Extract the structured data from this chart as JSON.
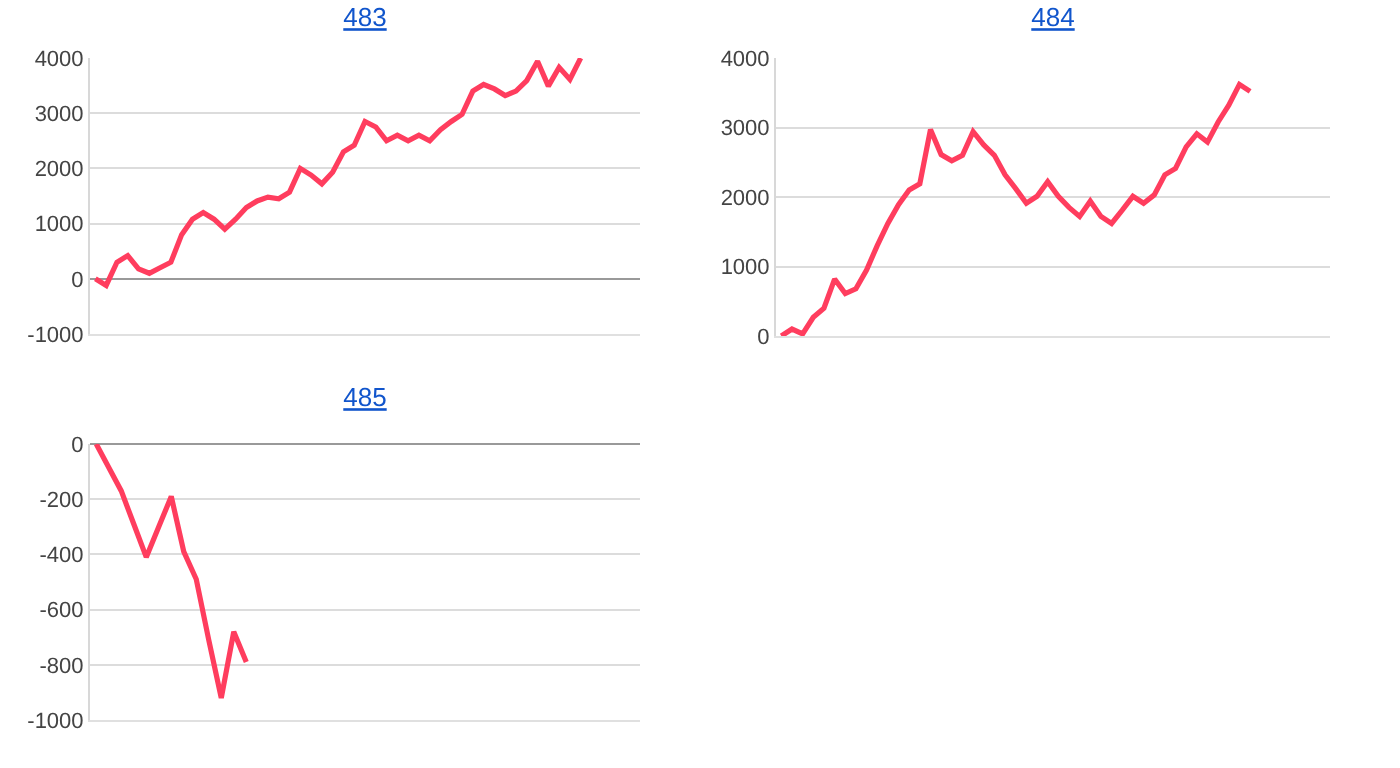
{
  "chart_data": [
    {
      "type": "line",
      "title": "483",
      "categories": [
        null,
        null,
        null,
        null,
        null,
        null,
        null,
        null,
        null,
        null,
        null,
        null,
        null,
        null,
        null,
        null,
        null,
        null,
        null,
        null,
        null,
        null,
        null,
        null,
        null,
        null,
        null,
        null,
        null,
        null,
        null,
        null,
        null,
        null,
        null,
        null,
        null,
        null,
        null,
        null,
        null,
        null,
        null,
        null,
        null,
        null,
        null,
        null,
        null,
        null,
        null
      ],
      "series": [
        {
          "color": "#ff3d5e",
          "values": [
            0,
            -120,
            300,
            420,
            180,
            100,
            200,
            300,
            800,
            1080,
            1200,
            1080,
            900,
            1080,
            1290,
            1410,
            1480,
            1450,
            1570,
            2000,
            1880,
            1720,
            1930,
            2300,
            2420,
            2850,
            2750,
            2500,
            2600,
            2500,
            2600,
            2500,
            2700,
            2850,
            2980,
            3400,
            3520,
            3440,
            3320,
            3400,
            3590,
            3940,
            3490,
            3830,
            3610,
            4000,
            null,
            null,
            null,
            null,
            null
          ]
        }
      ],
      "ylim": [
        -1000,
        4000
      ],
      "yticks": [
        -1000,
        0,
        1000,
        2000,
        3000,
        4000
      ],
      "grid": "y",
      "marker": "none",
      "line_style": "solid",
      "tick_labels": "y"
    },
    {
      "type": "line",
      "title": "484",
      "categories": [
        null,
        null,
        null,
        null,
        null,
        null,
        null,
        null,
        null,
        null,
        null,
        null,
        null,
        null,
        null,
        null,
        null,
        null,
        null,
        null,
        null,
        null,
        null,
        null,
        null,
        null,
        null,
        null,
        null,
        null,
        null,
        null,
        null,
        null,
        null,
        null,
        null,
        null,
        null,
        null,
        null,
        null,
        null,
        null,
        null,
        null,
        null,
        null,
        null,
        null,
        null,
        null
      ],
      "series": [
        {
          "color": "#ff3d5e",
          "values": [
            0,
            100,
            30,
            270,
            400,
            820,
            610,
            680,
            950,
            1300,
            1620,
            1890,
            2100,
            2190,
            2970,
            2610,
            2520,
            2600,
            2940,
            2750,
            2600,
            2320,
            2120,
            1910,
            2010,
            2220,
            2010,
            1850,
            1720,
            1940,
            1720,
            1620,
            1810,
            2010,
            1910,
            2030,
            2320,
            2410,
            2720,
            2910,
            2790,
            3080,
            3320,
            3620,
            3520,
            null,
            null,
            null,
            null,
            null,
            null,
            null
          ]
        }
      ],
      "ylim": [
        0,
        4000
      ],
      "yticks": [
        0,
        1000,
        2000,
        3000,
        4000
      ],
      "grid": "y",
      "marker": "none",
      "line_style": "solid",
      "tick_labels": "y"
    },
    {
      "type": "line",
      "title": "485",
      "categories": [
        null,
        null,
        null,
        null,
        null,
        null,
        null,
        null,
        null,
        null,
        null,
        null,
        null,
        null,
        null,
        null,
        null,
        null,
        null,
        null,
        null,
        null,
        null,
        null,
        null,
        null,
        null,
        null,
        null,
        null,
        null,
        null,
        null,
        null,
        null,
        null,
        null,
        null,
        null,
        null,
        null,
        null,
        null,
        null
      ],
      "series": [
        {
          "color": "#ff3d5e",
          "values": [
            0,
            -85,
            -170,
            -290,
            -410,
            -300,
            -190,
            -390,
            -490,
            -710,
            -920,
            -680,
            -790,
            null,
            null,
            null,
            null,
            null,
            null,
            null,
            null,
            null,
            null,
            null,
            null,
            null,
            null,
            null,
            null,
            null,
            null,
            null,
            null,
            null,
            null,
            null,
            null,
            null,
            null,
            null,
            null,
            null,
            null,
            null
          ]
        }
      ],
      "ylim": [
        -1000,
        0
      ],
      "yticks": [
        -1000,
        -800,
        -600,
        -400,
        -200,
        0
      ],
      "grid": "y",
      "marker": "none",
      "line_style": "solid",
      "tick_labels": "y"
    }
  ]
}
